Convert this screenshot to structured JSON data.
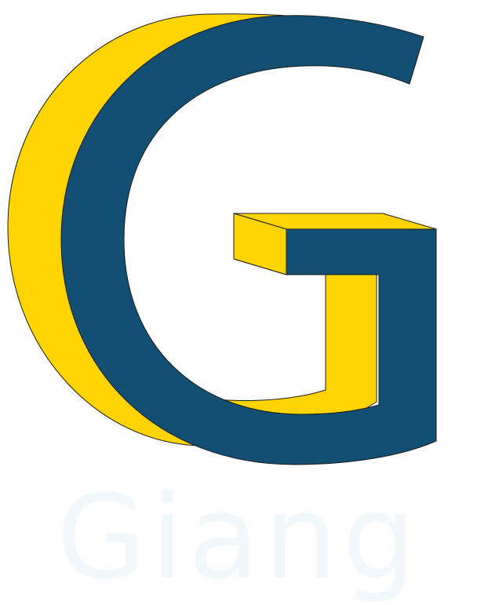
{
  "logo": {
    "letter": "G",
    "wordmark": "Giang"
  },
  "colors": {
    "front": "#124f72",
    "shadow": "#ffd400",
    "outline": "#1b1b1b",
    "wordmark": "#f2f9fc",
    "background": "#ffffff"
  }
}
